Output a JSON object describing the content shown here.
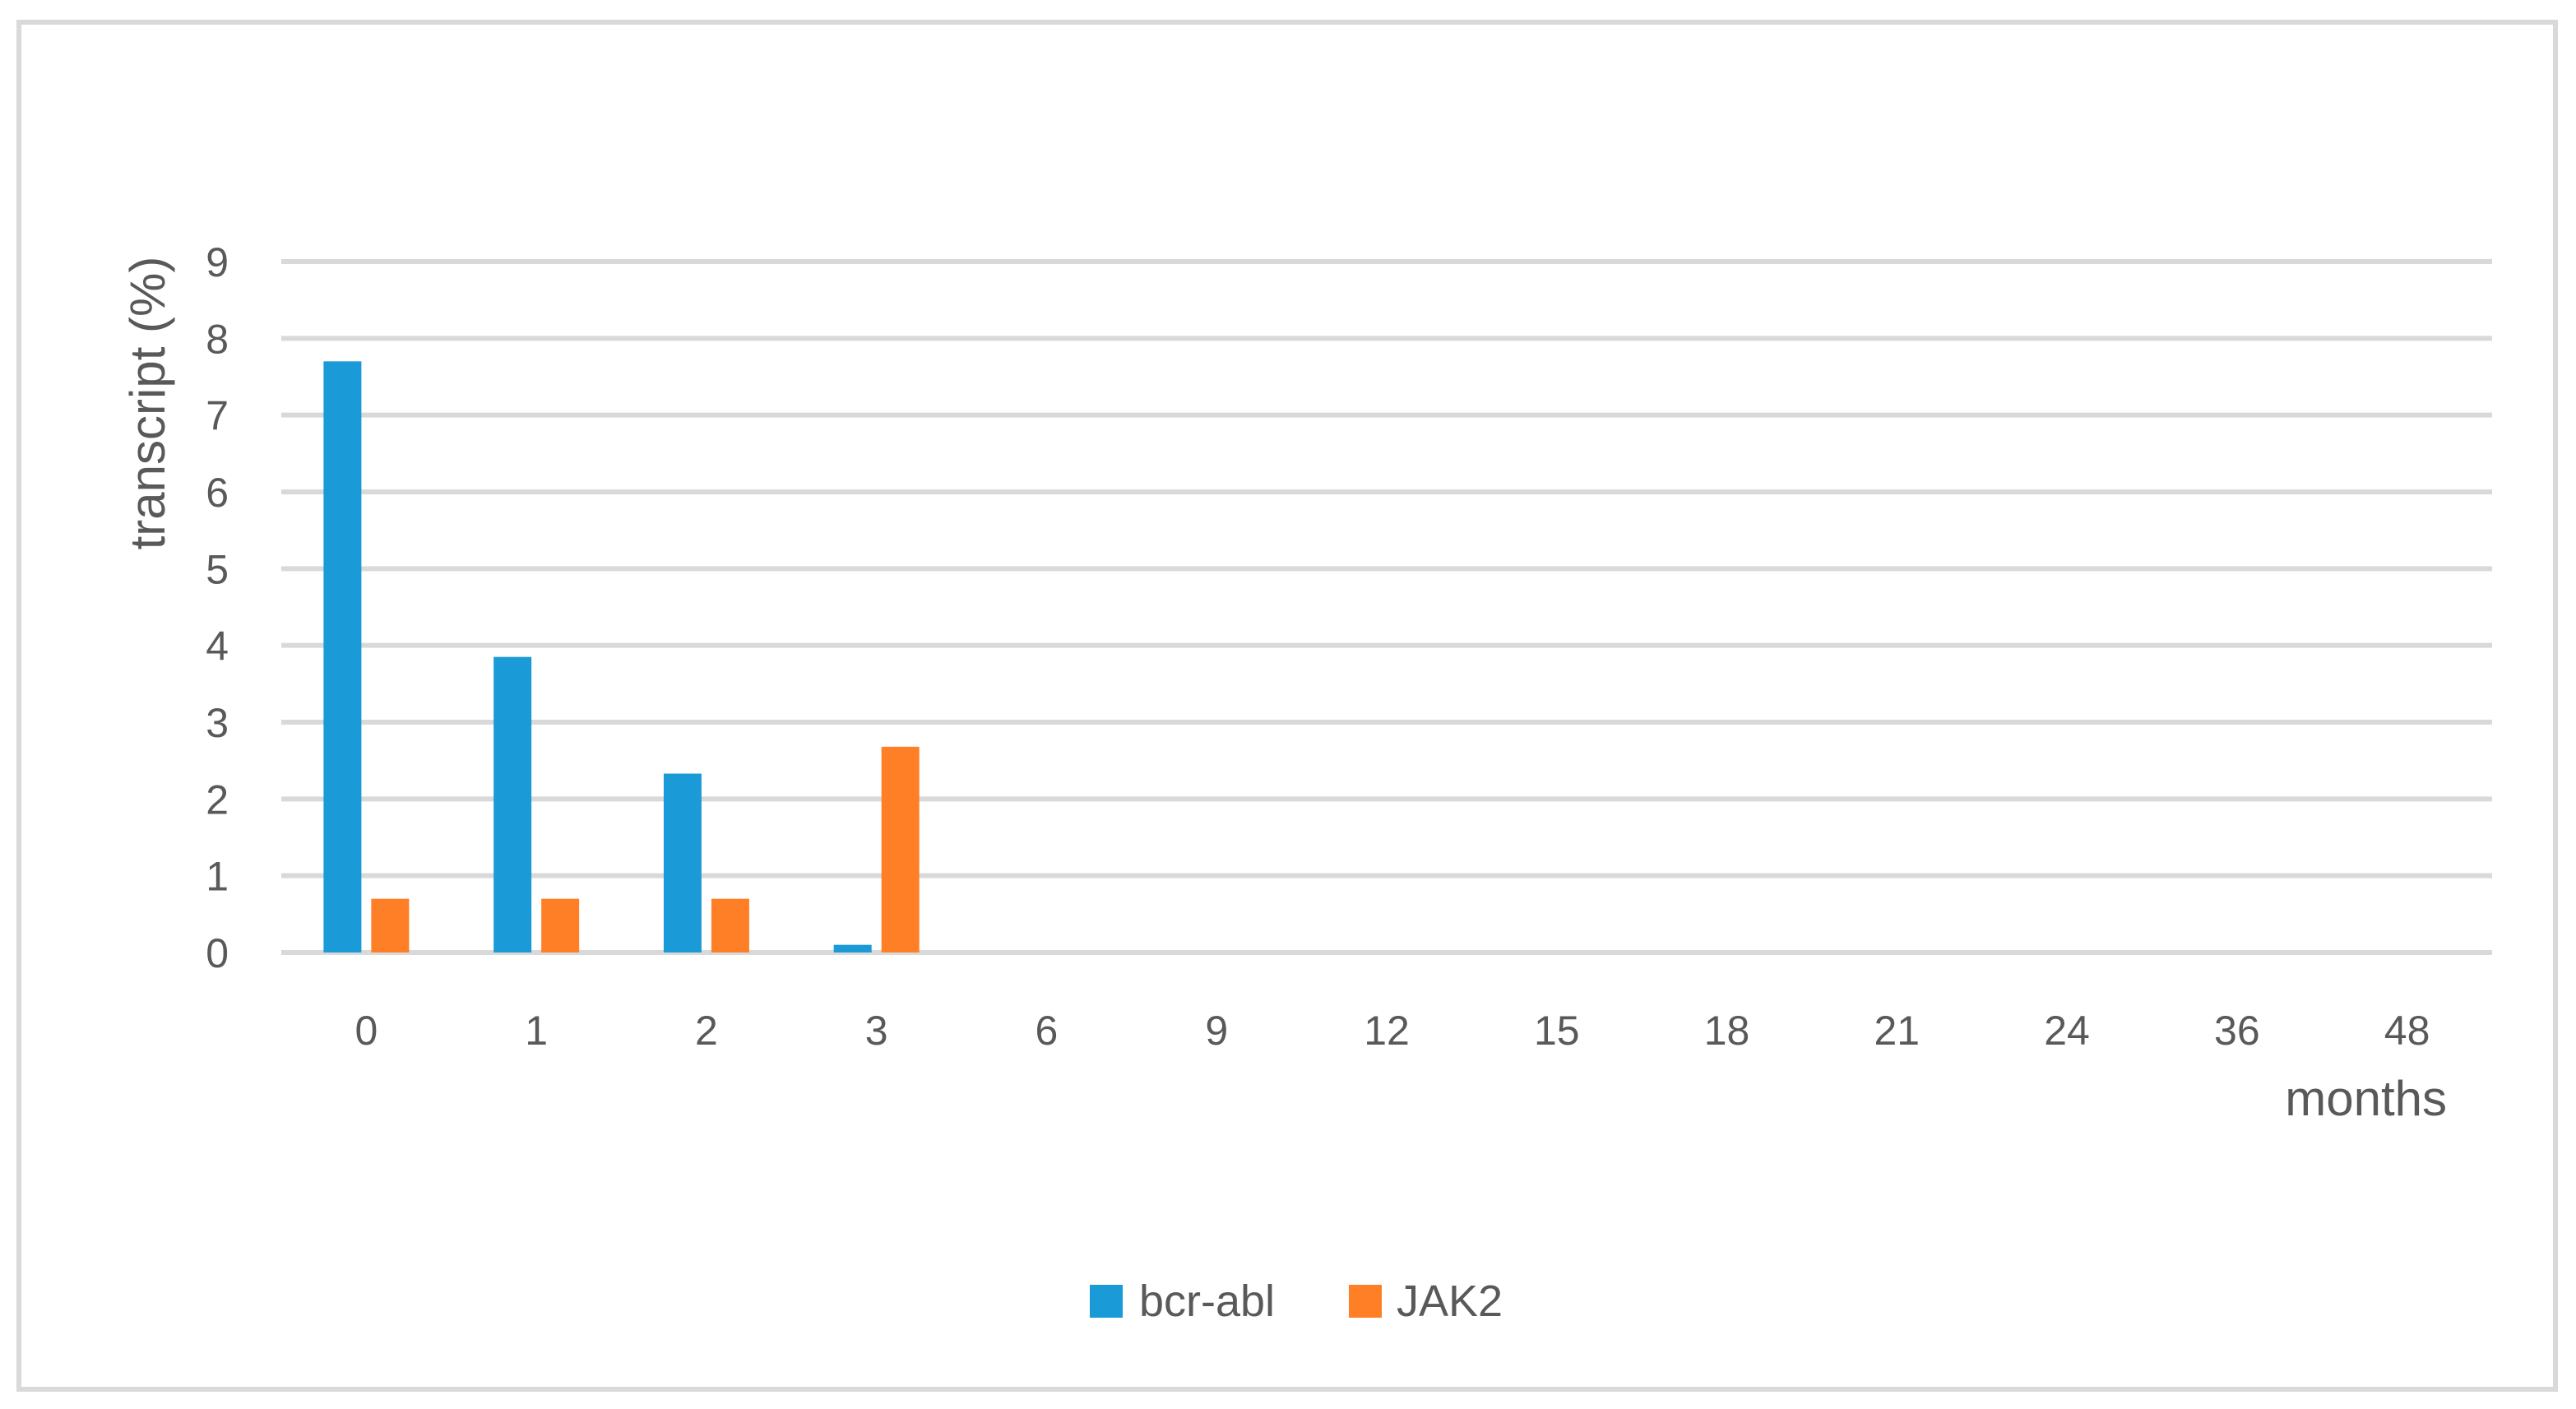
{
  "chart_data": {
    "type": "bar",
    "title": "",
    "ylabel": "transcript (%)",
    "xlabel": "months",
    "categories": [
      "0",
      "1",
      "2",
      "3",
      "6",
      "9",
      "12",
      "15",
      "18",
      "21",
      "24",
      "36",
      "48"
    ],
    "series": [
      {
        "name": "bcr-abl",
        "color": "#1a9bd7",
        "values": [
          7.7,
          3.85,
          2.33,
          0.1,
          0,
          0,
          0,
          0,
          0,
          0,
          0,
          0,
          0
        ]
      },
      {
        "name": "JAK2",
        "color": "#ff7f27",
        "values": [
          0.7,
          0.7,
          0.7,
          2.68,
          0,
          0,
          0,
          0,
          0,
          0,
          0,
          0,
          0
        ]
      }
    ],
    "ylim": [
      0,
      9
    ],
    "yticks": [
      0,
      1,
      2,
      3,
      4,
      5,
      6,
      7,
      8,
      9
    ],
    "grid": true,
    "gridline_color": "#d9d9d9",
    "legend_position": "bottom"
  }
}
